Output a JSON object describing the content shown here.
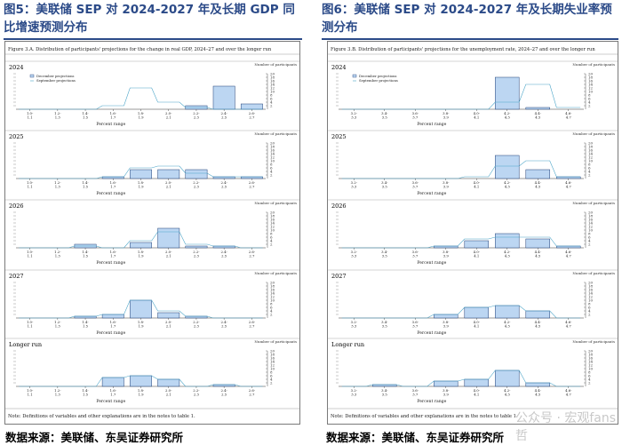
{
  "figures": [
    {
      "id": "gdp",
      "heading": "图5：美联储 SEP 对 2024-2027 年及长期 GDP 同比增速预测分布",
      "caption": "Figure 3.A. Distribution of participants' projections for the change in real GDP, 2024–27 and over the longer run",
      "note": "Note: Definitions of variables and other explanations are in the notes to table 1.",
      "source": "数据来源：美联储、东吴证券研究所"
    },
    {
      "id": "unemployment",
      "heading": "图6：美联储 SEP 对 2024-2027 年及长期失业率预测分布",
      "caption": "Figure 3.B. Distribution of participants' projections for the unemployment rate, 2024–27 and over the longer run",
      "note": "Note: Definitions of variables and other explanations are in the notes to table 1.",
      "source": "数据来源：美联储、东吴证券研究所"
    }
  ],
  "common": {
    "y_axis_label": "Number of participants",
    "x_axis_label": "Percent range",
    "legend": [
      "December projections",
      "September projections"
    ],
    "y_ticks": [
      2,
      4,
      6,
      8,
      10,
      12,
      14,
      16,
      18,
      20
    ],
    "colors": {
      "heading": "#2b4a88",
      "bar_fill": "#bcd6f2",
      "bar_stroke": "#1f3f77",
      "september_line": "#4aa4c8"
    }
  },
  "watermark": "公众号 · 宏观fans哲",
  "chart_data": [
    {
      "type": "bar",
      "figure": "gdp",
      "title": "2024",
      "categories": [
        "1.0-\n1.1",
        "1.2-\n1.3",
        "1.4-\n1.5",
        "1.6-\n1.7",
        "1.8-\n1.9",
        "2.0-\n2.1",
        "2.2-\n2.3",
        "2.4-\n2.5",
        "2.6-\n2.7"
      ],
      "series": [
        {
          "name": "December projections",
          "values": [
            0,
            0,
            0,
            0,
            0,
            0,
            2,
            13,
            3
          ]
        },
        {
          "name": "September projections",
          "values": [
            0,
            0,
            0,
            2,
            12,
            4,
            1,
            0,
            0
          ]
        }
      ],
      "ylim": [
        0,
        20
      ]
    },
    {
      "type": "bar",
      "figure": "gdp",
      "title": "2025",
      "categories": [
        "1.0-\n1.1",
        "1.2-\n1.3",
        "1.4-\n1.5",
        "1.6-\n1.7",
        "1.8-\n1.9",
        "2.0-\n2.1",
        "2.2-\n2.3",
        "2.4-\n2.5",
        "2.6-\n2.7"
      ],
      "series": [
        {
          "name": "December projections",
          "values": [
            0,
            0,
            0,
            1,
            5,
            5,
            5,
            1,
            1
          ]
        },
        {
          "name": "September projections",
          "values": [
            0,
            0,
            0,
            1,
            6,
            7,
            3,
            1,
            1
          ]
        }
      ],
      "ylim": [
        0,
        20
      ]
    },
    {
      "type": "bar",
      "figure": "gdp",
      "title": "2026",
      "categories": [
        "1.0-\n1.1",
        "1.2-\n1.3",
        "1.4-\n1.5",
        "1.6-\n1.7",
        "1.8-\n1.9",
        "2.0-\n2.1",
        "2.2-\n2.3",
        "2.4-\n2.5",
        "2.6-\n2.7"
      ],
      "series": [
        {
          "name": "December projections",
          "values": [
            0,
            0,
            2,
            0,
            3,
            11,
            1,
            1,
            0
          ]
        },
        {
          "name": "September projections",
          "values": [
            0,
            0,
            1,
            0,
            4,
            9,
            2,
            1,
            0
          ]
        }
      ],
      "ylim": [
        0,
        20
      ]
    },
    {
      "type": "bar",
      "figure": "gdp",
      "title": "2027",
      "categories": [
        "1.0-\n1.1",
        "1.2-\n1.3",
        "1.4-\n1.5",
        "1.6-\n1.7",
        "1.8-\n1.9",
        "2.0-\n2.1",
        "2.2-\n2.3",
        "2.4-\n2.5",
        "2.6-\n2.7"
      ],
      "series": [
        {
          "name": "December projections",
          "values": [
            0,
            0,
            1,
            2,
            10,
            3,
            1,
            0,
            0
          ]
        },
        {
          "name": "September projections",
          "values": [
            0,
            0,
            1,
            2,
            10,
            4,
            1,
            0,
            0
          ]
        }
      ],
      "ylim": [
        0,
        20
      ]
    },
    {
      "type": "bar",
      "figure": "gdp",
      "title": "Longer run",
      "categories": [
        "1.0-\n1.1",
        "1.2-\n1.3",
        "1.4-\n1.5",
        "1.6-\n1.7",
        "1.8-\n1.9",
        "2.0-\n2.1",
        "2.2-\n2.3",
        "2.4-\n2.5",
        "2.6-\n2.7"
      ],
      "series": [
        {
          "name": "December projections",
          "values": [
            0,
            0,
            0,
            5,
            6,
            4,
            0,
            1,
            0
          ]
        },
        {
          "name": "September projections",
          "values": [
            0,
            0,
            0,
            5,
            6,
            4,
            0,
            1,
            0
          ]
        }
      ],
      "ylim": [
        0,
        20
      ]
    },
    {
      "type": "bar",
      "figure": "unemployment",
      "title": "2024",
      "categories": [
        "3.2-\n3.3",
        "3.4-\n3.5",
        "3.6-\n3.7",
        "3.8-\n3.9",
        "4.0-\n4.1",
        "4.2-\n4.3",
        "4.4-\n4.5",
        "4.6-\n4.7"
      ],
      "series": [
        {
          "name": "December projections",
          "values": [
            0,
            0,
            0,
            0,
            0,
            18,
            1,
            0
          ]
        },
        {
          "name": "September projections",
          "values": [
            0,
            0,
            0,
            0,
            0,
            4,
            14,
            1
          ]
        }
      ],
      "ylim": [
        0,
        20
      ]
    },
    {
      "type": "bar",
      "figure": "unemployment",
      "title": "2025",
      "categories": [
        "3.2-\n3.3",
        "3.4-\n3.5",
        "3.6-\n3.7",
        "3.8-\n3.9",
        "4.0-\n4.1",
        "4.2-\n4.3",
        "4.4-\n4.5",
        "4.6-\n4.7"
      ],
      "series": [
        {
          "name": "December projections",
          "values": [
            0,
            0,
            0,
            0,
            0,
            13,
            5,
            1
          ]
        },
        {
          "name": "September projections",
          "values": [
            0,
            0,
            0,
            0,
            1,
            7,
            10,
            1
          ]
        }
      ],
      "ylim": [
        0,
        20
      ]
    },
    {
      "type": "bar",
      "figure": "unemployment",
      "title": "2026",
      "categories": [
        "3.2-\n3.3",
        "3.4-\n3.5",
        "3.6-\n3.7",
        "3.8-\n3.9",
        "4.0-\n4.1",
        "4.2-\n4.3",
        "4.4-\n4.5",
        "4.6-\n4.7"
      ],
      "series": [
        {
          "name": "December projections",
          "values": [
            0,
            0,
            0,
            1,
            4,
            8,
            5,
            1
          ]
        },
        {
          "name": "September projections",
          "values": [
            0,
            0,
            0,
            1,
            5,
            6,
            6,
            1
          ]
        }
      ],
      "ylim": [
        0,
        20
      ]
    },
    {
      "type": "bar",
      "figure": "unemployment",
      "title": "2027",
      "categories": [
        "3.2-\n3.3",
        "3.4-\n3.5",
        "3.6-\n3.7",
        "3.8-\n3.9",
        "4.0-\n4.1",
        "4.2-\n4.3",
        "4.4-\n4.5",
        "4.6-\n4.7"
      ],
      "series": [
        {
          "name": "December projections",
          "values": [
            0,
            0,
            0,
            2,
            6,
            7,
            4,
            0
          ]
        },
        {
          "name": "September projections",
          "values": [
            0,
            0,
            0,
            2,
            6,
            7,
            4,
            0
          ]
        }
      ],
      "ylim": [
        0,
        20
      ]
    },
    {
      "type": "bar",
      "figure": "unemployment",
      "title": "Longer run",
      "categories": [
        "3.2-\n3.3",
        "3.4-\n3.5",
        "3.6-\n3.7",
        "3.8-\n3.9",
        "4.0-\n4.1",
        "4.2-\n4.3",
        "4.4-\n4.5",
        "4.6-\n4.7"
      ],
      "series": [
        {
          "name": "December projections",
          "values": [
            0,
            1,
            0,
            3,
            4,
            9,
            2,
            0
          ]
        },
        {
          "name": "September projections",
          "values": [
            0,
            1,
            0,
            3,
            4,
            9,
            2,
            0
          ]
        }
      ],
      "ylim": [
        0,
        20
      ]
    }
  ]
}
